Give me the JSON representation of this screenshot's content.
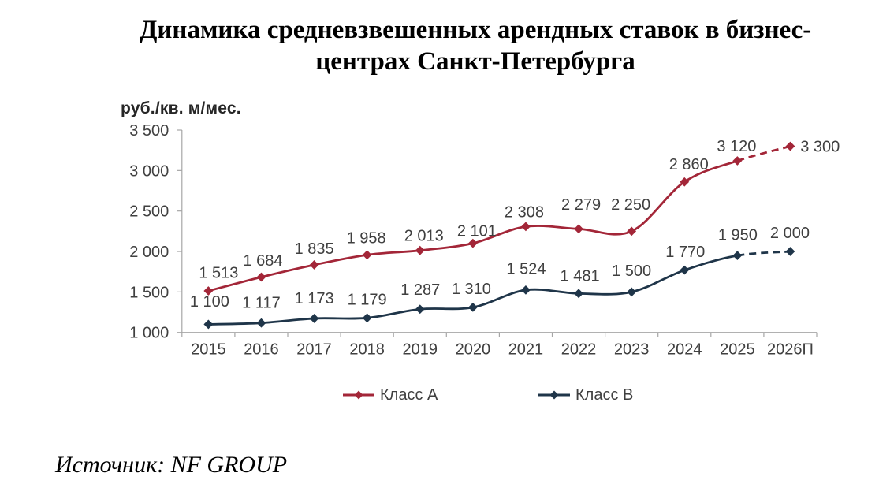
{
  "title": {
    "line1": "Динамика средневзвешенных арендных ставок в бизнес-",
    "line2": "центрах Санкт-Петербурга"
  },
  "y_axis_unit": "руб./кв. м/мес.",
  "source": "Источник: NF GROUP",
  "colors": {
    "class_a": "#a32638",
    "class_b": "#1f3549",
    "axis": "#a6a6a6",
    "text": "#404040"
  },
  "legend": {
    "items": [
      {
        "label": "Класс А",
        "color": "#a32638"
      },
      {
        "label": "Класс B",
        "color": "#1f3549"
      }
    ]
  },
  "chart_data": {
    "type": "line",
    "title": "Динамика средневзвешенных арендных ставок в бизнес-центрах Санкт-Петербурга",
    "ylabel": "руб./кв. м/мес.",
    "categories": [
      "2015",
      "2016",
      "2017",
      "2018",
      "2019",
      "2020",
      "2021",
      "2022",
      "2023",
      "2024",
      "2025",
      "2026П"
    ],
    "series": [
      {
        "name": "Класс А",
        "color": "#a32638",
        "values": [
          1513,
          1684,
          1835,
          1958,
          2013,
          2101,
          2308,
          2279,
          2250,
          2860,
          3120,
          3300
        ],
        "labels": [
          "1 513",
          "1 684",
          "1 835",
          "1 958",
          "2 013",
          "2 101",
          "2 308",
          "2 279",
          "2 250",
          "2 860",
          "3 120",
          "3 300"
        ],
        "label_offsets": [
          [
            13,
            -24
          ],
          [
            2,
            -22
          ],
          [
            0,
            -21.5
          ],
          [
            -1,
            -22
          ],
          [
            5,
            -19.5
          ],
          [
            5,
            -16.5
          ],
          [
            -2,
            -19
          ],
          [
            3,
            -31.5
          ],
          [
            -1,
            -34.5
          ],
          [
            5.5,
            -23
          ],
          [
            -1,
            -19.5
          ],
          [
            0,
            0
          ]
        ],
        "forecast_from_index": 10,
        "last_label_position": "right"
      },
      {
        "name": "Класс B",
        "color": "#1f3549",
        "values": [
          1100,
          1117,
          1173,
          1179,
          1287,
          1310,
          1524,
          1481,
          1500,
          1770,
          1950,
          2000
        ],
        "labels": [
          "1 100",
          "1 117",
          "1 173",
          "1 179",
          "1 287",
          "1 310",
          "1 524",
          "1 481",
          "1 500",
          "1 770",
          "1 950",
          "2 000"
        ],
        "label_offsets": [
          [
            1.5,
            -29.5
          ],
          [
            0,
            -26.5
          ],
          [
            0,
            -26
          ],
          [
            0,
            -24
          ],
          [
            0.5,
            -25.5
          ],
          [
            -2,
            -24
          ],
          [
            0.5,
            -27.5
          ],
          [
            1.5,
            -23
          ],
          [
            0,
            -27.5
          ],
          [
            1,
            -24
          ],
          [
            0.5,
            -27
          ],
          [
            -0.5,
            -24.5
          ]
        ],
        "forecast_from_index": 10,
        "last_label_position": "above"
      }
    ],
    "yticks": [
      1000,
      1500,
      2000,
      2500,
      3000,
      3500
    ],
    "ytick_labels": [
      "1 000",
      "1 500",
      "2 000",
      "2 500",
      "3 000",
      "3 500"
    ],
    "ylim": [
      1000,
      3500
    ],
    "grid": false,
    "legend_position": "bottom",
    "line_style_smooth": true,
    "marker": "diamond"
  }
}
